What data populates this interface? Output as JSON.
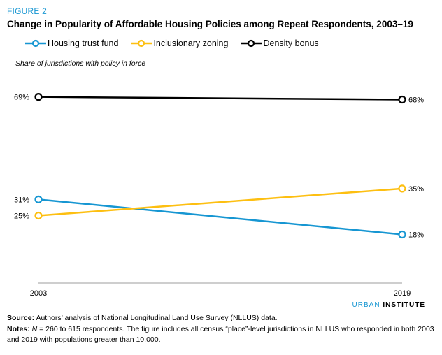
{
  "figure": {
    "label": "FIGURE 2",
    "title": "Change in Popularity of Affordable Housing Policies among Repeat Respondents, 2003–19",
    "y_caption": "Share of jurisdictions with policy in force"
  },
  "colors": {
    "accent": "#1696d2",
    "housing_trust_fund": "#1696d2",
    "inclusionary_zoning": "#fdbf11",
    "density_bonus": "#000000"
  },
  "chart_data": {
    "type": "line",
    "x": [
      "2003",
      "2019"
    ],
    "ylim": [
      0,
      80
    ],
    "grid": false,
    "legend_position": "top-left",
    "series": [
      {
        "name": "Housing trust fund",
        "values": [
          31,
          18
        ],
        "labels": [
          "31%",
          "18%"
        ],
        "color": "#1696d2"
      },
      {
        "name": "Inclusionary zoning",
        "values": [
          25,
          35
        ],
        "labels": [
          "25%",
          "35%"
        ],
        "color": "#fdbf11"
      },
      {
        "name": "Density bonus",
        "values": [
          69,
          68
        ],
        "labels": [
          "69%",
          "68%"
        ],
        "color": "#000000"
      }
    ]
  },
  "brand": {
    "part1": "URBAN",
    "part2": "INSTITUTE"
  },
  "notes": {
    "source_label": "Source:",
    "source_text": "Authors’ analysis of National Longitudinal Land Use Survey (NLLUS) data.",
    "notes_label": "Notes:",
    "notes_n": "N",
    "notes_text": " = 260 to 615 respondents. The figure includes all census “place”-level jurisdictions in NLLUS who responded in both 2003 and 2019 with populations greater than 10,000."
  }
}
